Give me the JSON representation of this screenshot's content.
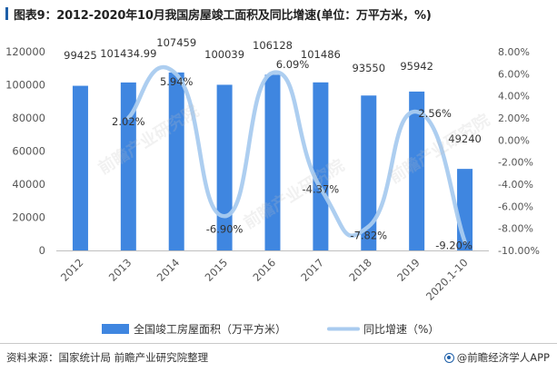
{
  "title": "图表9：2012-2020年10月我国房屋竣工面积及同比增速(单位：万平方米，%)",
  "source": "资料来源：国家统计局 前瞻产业研究院整理",
  "brand": "@前瞻经济学人APP",
  "watermark": "前瞻产业研究院",
  "chart_data": {
    "type": "bar+line",
    "categories": [
      "2012",
      "2013",
      "2014",
      "2015",
      "2016",
      "2017",
      "2018",
      "2019",
      "2020.1-10"
    ],
    "series": [
      {
        "name": "全国竣工房屋面积（万平方米）",
        "type": "bar",
        "axis": "left",
        "values": [
          99425,
          101434.99,
          107459,
          100039,
          106128,
          101486,
          93550,
          95942,
          49240
        ],
        "labels": [
          "99425",
          "101434.99",
          "107459",
          "100039",
          "106128",
          "101486",
          "93550",
          "95942",
          "49240"
        ]
      },
      {
        "name": "同比增速（%）",
        "type": "line",
        "axis": "right",
        "values": [
          null,
          2.02,
          5.94,
          -6.9,
          6.09,
          -4.37,
          -7.82,
          2.56,
          -9.2
        ],
        "labels": [
          "",
          "2.02%",
          "5.94%",
          "-6.90%",
          "6.09%",
          "-4.37%",
          "-7.82%",
          "2.56%",
          "-9.20%"
        ]
      }
    ],
    "y_left": {
      "min": 0,
      "max": 120000,
      "ticks": [
        "0",
        "20000",
        "40000",
        "60000",
        "80000",
        "100000",
        "120000"
      ]
    },
    "y_right": {
      "min": -10,
      "max": 8,
      "ticks": [
        "-10.00%",
        "-8.00%",
        "-6.00%",
        "-4.00%",
        "-2.00%",
        "0.00%",
        "2.00%",
        "4.00%",
        "6.00%",
        "8.00%"
      ]
    },
    "colors": {
      "bar": "#3f86e0",
      "line": "#a9cbef"
    },
    "legend_position": "bottom",
    "grid": false
  }
}
